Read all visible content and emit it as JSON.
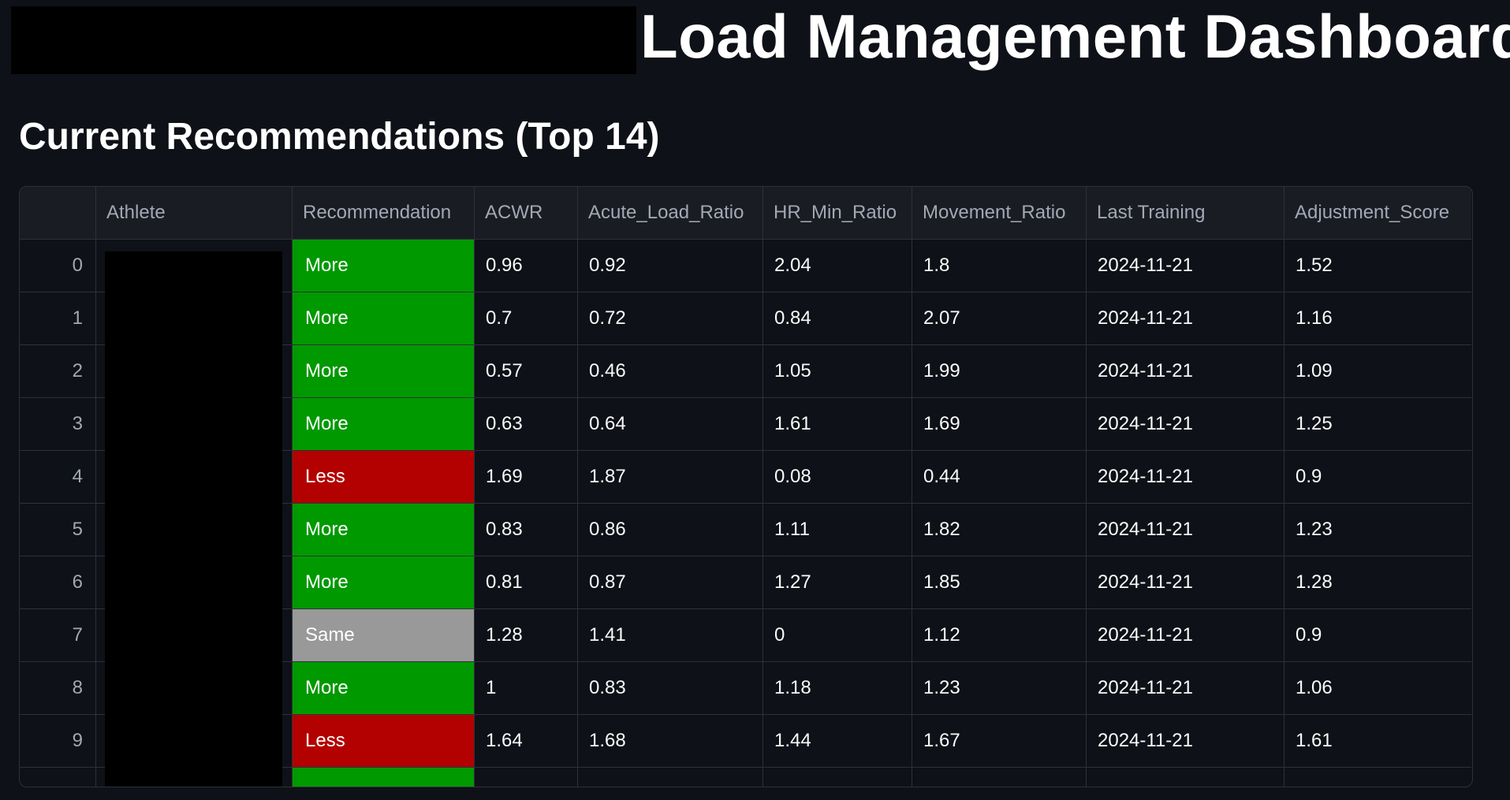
{
  "header": {
    "title": "Load Management Dashboard"
  },
  "section": {
    "title": "Current Recommendations (Top 14)"
  },
  "colors": {
    "background": "#0e1117",
    "more": "#009900",
    "less": "#b30000",
    "same": "#999999",
    "header_bg": "#1a1c24",
    "border": "#2e313a"
  },
  "table": {
    "columns": [
      "",
      "Athlete",
      "Recommendation",
      "ACWR",
      "Acute_Load_Ratio",
      "HR_Min_Ratio",
      "Movement_Ratio",
      "Last Training",
      "Adjustment_Score"
    ],
    "rows": [
      {
        "index": "0",
        "athlete": "",
        "recommendation": "More",
        "acwr": "0.96",
        "acute_load_ratio": "0.92",
        "hr_min_ratio": "2.04",
        "movement_ratio": "1.8",
        "last_training": "2024-11-21",
        "adjustment_score": "1.52"
      },
      {
        "index": "1",
        "athlete": "",
        "recommendation": "More",
        "acwr": "0.7",
        "acute_load_ratio": "0.72",
        "hr_min_ratio": "0.84",
        "movement_ratio": "2.07",
        "last_training": "2024-11-21",
        "adjustment_score": "1.16"
      },
      {
        "index": "2",
        "athlete": "",
        "recommendation": "More",
        "acwr": "0.57",
        "acute_load_ratio": "0.46",
        "hr_min_ratio": "1.05",
        "movement_ratio": "1.99",
        "last_training": "2024-11-21",
        "adjustment_score": "1.09"
      },
      {
        "index": "3",
        "athlete": "",
        "recommendation": "More",
        "acwr": "0.63",
        "acute_load_ratio": "0.64",
        "hr_min_ratio": "1.61",
        "movement_ratio": "1.69",
        "last_training": "2024-11-21",
        "adjustment_score": "1.25"
      },
      {
        "index": "4",
        "athlete": "",
        "recommendation": "Less",
        "acwr": "1.69",
        "acute_load_ratio": "1.87",
        "hr_min_ratio": "0.08",
        "movement_ratio": "0.44",
        "last_training": "2024-11-21",
        "adjustment_score": "0.9"
      },
      {
        "index": "5",
        "athlete": "",
        "recommendation": "More",
        "acwr": "0.83",
        "acute_load_ratio": "0.86",
        "hr_min_ratio": "1.11",
        "movement_ratio": "1.82",
        "last_training": "2024-11-21",
        "adjustment_score": "1.23"
      },
      {
        "index": "6",
        "athlete": "",
        "recommendation": "More",
        "acwr": "0.81",
        "acute_load_ratio": "0.87",
        "hr_min_ratio": "1.27",
        "movement_ratio": "1.85",
        "last_training": "2024-11-21",
        "adjustment_score": "1.28"
      },
      {
        "index": "7",
        "athlete": "",
        "recommendation": "Same",
        "acwr": "1.28",
        "acute_load_ratio": "1.41",
        "hr_min_ratio": "0",
        "movement_ratio": "1.12",
        "last_training": "2024-11-21",
        "adjustment_score": "0.9"
      },
      {
        "index": "8",
        "athlete": "",
        "recommendation": "More",
        "acwr": "1",
        "acute_load_ratio": "0.83",
        "hr_min_ratio": "1.18",
        "movement_ratio": "1.23",
        "last_training": "2024-11-21",
        "adjustment_score": "1.06"
      },
      {
        "index": "9",
        "athlete": "",
        "recommendation": "Less",
        "acwr": "1.64",
        "acute_load_ratio": "1.68",
        "hr_min_ratio": "1.44",
        "movement_ratio": "1.67",
        "last_training": "2024-11-21",
        "adjustment_score": "1.61"
      },
      {
        "index": "",
        "athlete": "",
        "recommendation": "",
        "acwr": "",
        "acute_load_ratio": "",
        "hr_min_ratio": "",
        "movement_ratio": "",
        "last_training": "",
        "adjustment_score": ""
      }
    ],
    "partial_row_recommendation_color": "more"
  }
}
